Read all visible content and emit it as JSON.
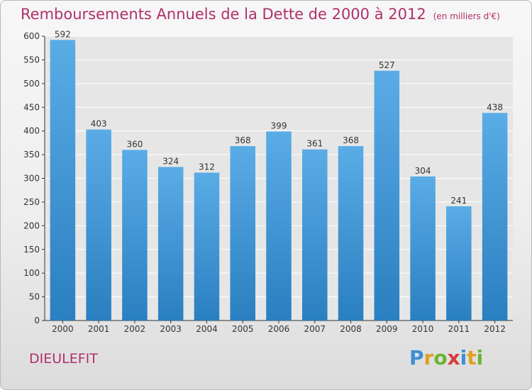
{
  "header": {
    "title": "Remboursements Annuels de la Dette de 2000 à 2012",
    "subtitle": "(en milliers d'€)"
  },
  "footer": {
    "commune": "DIEULEFIT",
    "brand_letters": [
      "P",
      "r",
      "o",
      "x",
      "i",
      "t",
      "i"
    ],
    "brand_colors": [
      "#3a8fd6",
      "#e0a020",
      "#6bb52e",
      "#d83a3a",
      "#3a8fd6",
      "#e0a020",
      "#6bb52e"
    ]
  },
  "chart_data": {
    "type": "bar",
    "title": "Remboursements Annuels de la Dette de 2000 à 2012",
    "subtitle": "(en milliers d'€)",
    "categories": [
      "2000",
      "2001",
      "2002",
      "2003",
      "2004",
      "2005",
      "2006",
      "2007",
      "2008",
      "2009",
      "2010",
      "2011",
      "2012"
    ],
    "values": [
      592,
      403,
      360,
      324,
      312,
      368,
      399,
      361,
      368,
      527,
      304,
      241,
      438
    ],
    "ylim": [
      0,
      600
    ],
    "yticks": [
      0,
      50,
      100,
      150,
      200,
      250,
      300,
      350,
      400,
      450,
      500,
      550,
      600
    ],
    "grid": true,
    "bar_color_light": "#5aace6",
    "bar_color_dark": "#2a7fc0",
    "axis_color": "#333333"
  }
}
